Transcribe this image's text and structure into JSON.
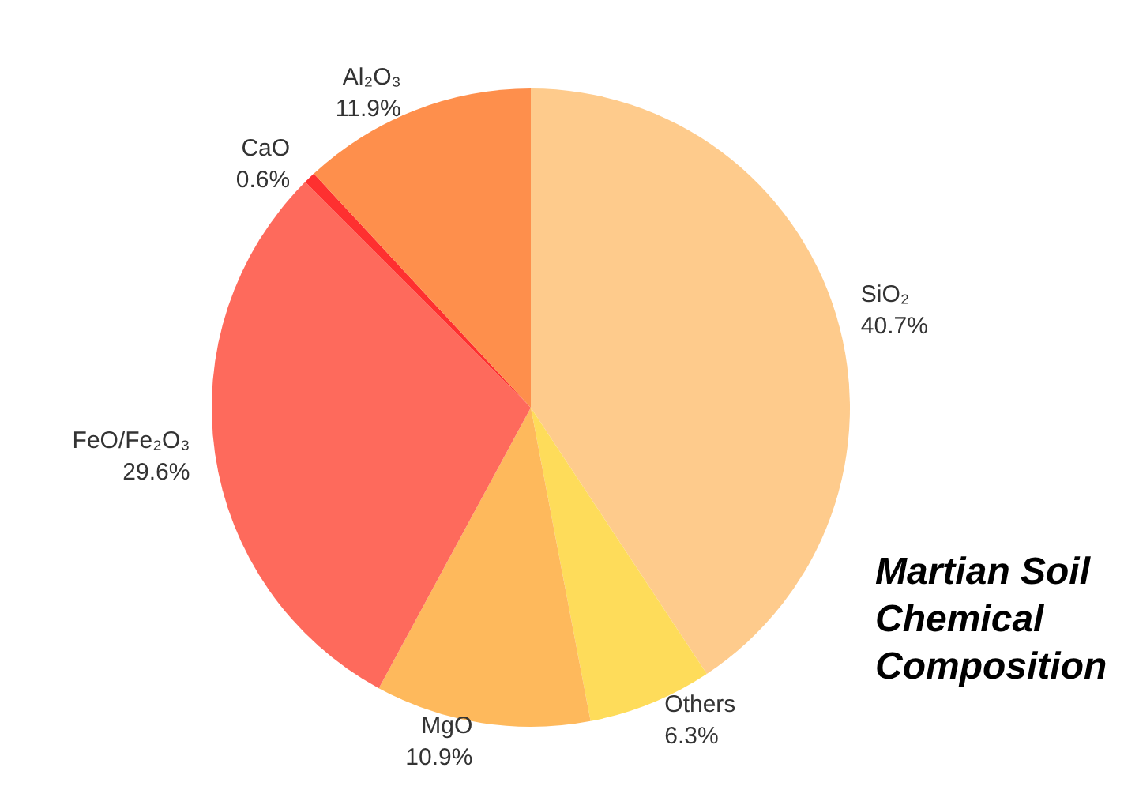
{
  "chart_data": {
    "type": "pie",
    "title": "Martian Soil Chemical Composition",
    "categories": [
      "SiO₂",
      "Others",
      "MgO",
      "FeO/Fe₂O₃",
      "CaO",
      "Al₂O₃"
    ],
    "values": [
      40.7,
      6.3,
      10.9,
      29.6,
      0.6,
      11.9
    ],
    "value_labels": [
      "40.7%",
      "6.3%",
      "10.9%",
      "29.6%",
      "0.6%",
      "11.9%"
    ],
    "colors": [
      "#fecb8c",
      "#fedc5a",
      "#feb95c",
      "#fe6a5c",
      "#fe3030",
      "#fe8f4c"
    ],
    "legend": false
  }
}
